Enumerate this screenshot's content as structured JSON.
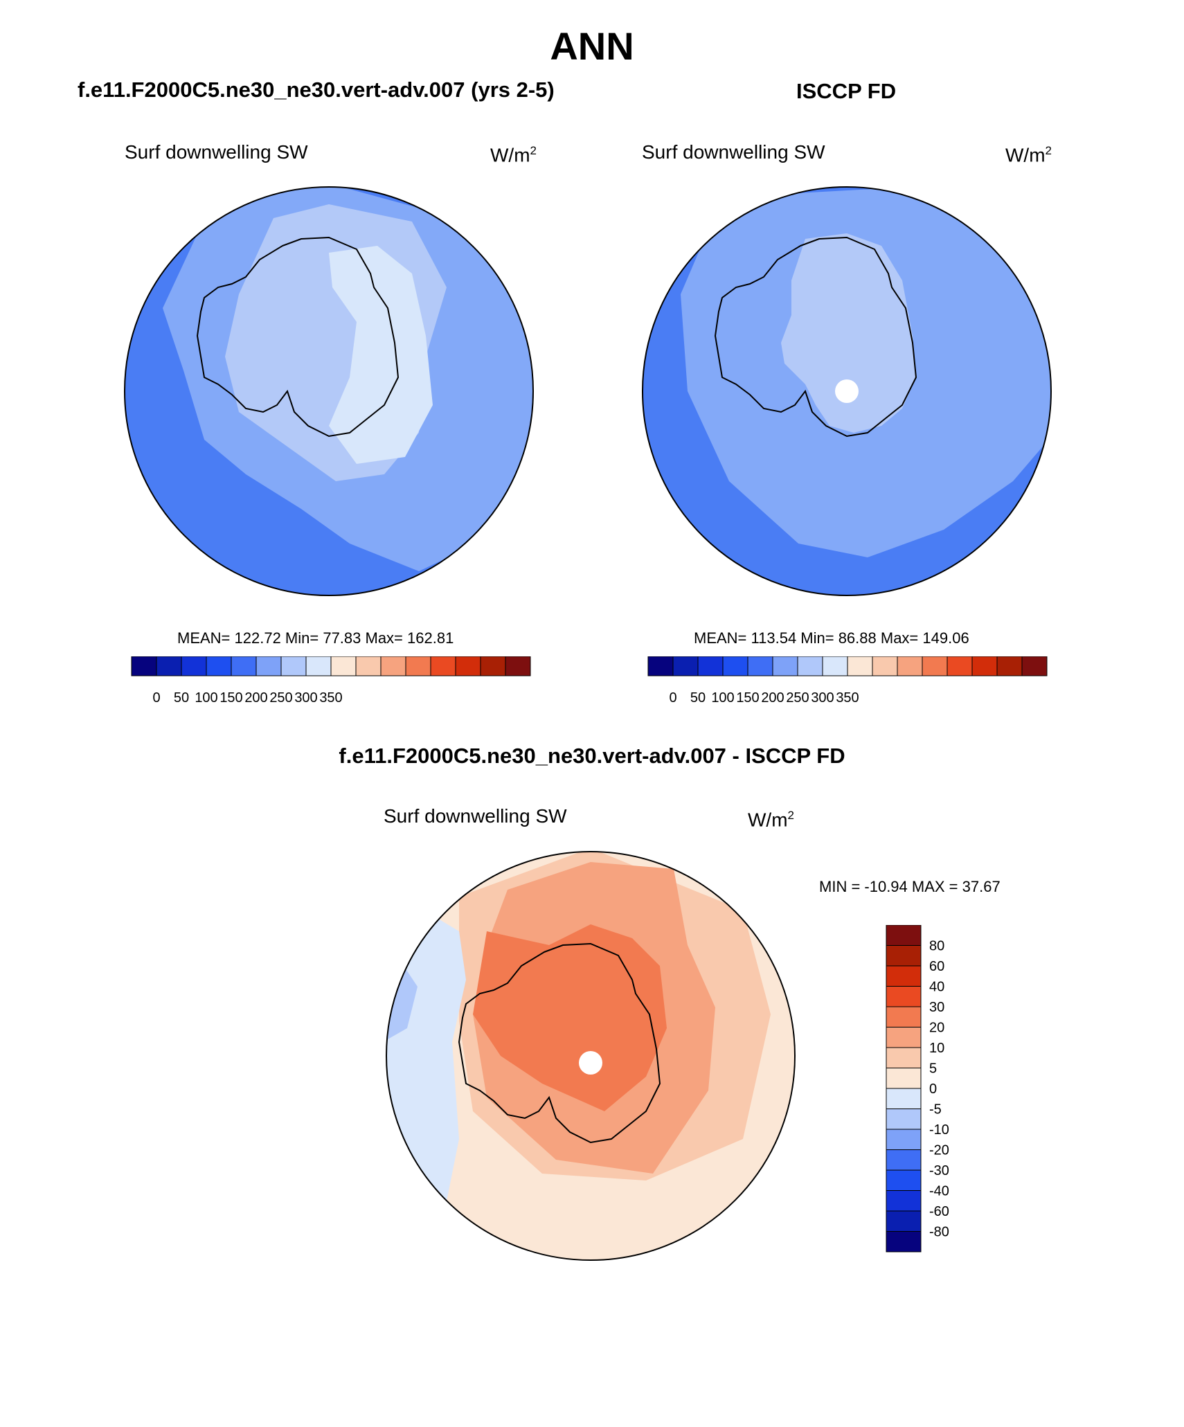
{
  "page_title": "ANN",
  "panels": {
    "model": {
      "header": "f.e11.F2000C5.ne30_ne30.vert-adv.007 (yrs 2-5)",
      "variable": "Surf downwelling SW",
      "units": "W/m",
      "units_sup": "2",
      "stats": "MEAN= 122.72  Min=  77.83  Max= 162.81"
    },
    "obs": {
      "header": "ISCCP FD",
      "variable": "Surf downwelling SW",
      "units": "W/m",
      "units_sup": "2",
      "stats": "MEAN= 113.54  Min=  86.88  Max= 149.06"
    },
    "diff": {
      "header": "f.e11.F2000C5.ne30_ne30.vert-adv.007 - ISCCP FD",
      "variable": "Surf downwelling SW",
      "units": "W/m",
      "units_sup": "2",
      "stats": "MIN = -10.94 MAX =  37.67"
    }
  },
  "chart_data": [
    {
      "type": "heatmap",
      "projection": "south-polar-stereographic",
      "title": "Surf downwelling SW",
      "dataset": "f.e11.F2000C5.ne30_ne30.vert-adv.007 (yrs 2-5)",
      "units": "W/m^2",
      "mean": 122.72,
      "min": 77.83,
      "max": 162.81,
      "colorbar_labels": [
        "0",
        "50",
        "100",
        "150",
        "200",
        "250",
        "300",
        "350"
      ],
      "colorbar_colors": [
        "#06037e",
        "#0a1fb0",
        "#1232d8",
        "#1e4ff0",
        "#3f6ef5",
        "#7ea2f8",
        "#b0c8fa",
        "#d9e7fb",
        "#fbe7d6",
        "#f9c9ad",
        "#f6a37f",
        "#f27a50",
        "#ea4a22",
        "#d22d0a",
        "#a82005",
        "#7d0f0f"
      ],
      "regions": {
        "ocean_outer": "#4a7df4",
        "ocean_mid": "#83a9f8",
        "coast_band": "#b3c9f8",
        "continent_core": "#d8e7fb"
      }
    },
    {
      "type": "heatmap",
      "projection": "south-polar-stereographic",
      "title": "Surf downwelling SW",
      "dataset": "ISCCP FD",
      "units": "W/m^2",
      "mean": 113.54,
      "min": 86.88,
      "max": 149.06,
      "colorbar_labels": [
        "0",
        "50",
        "100",
        "150",
        "200",
        "250",
        "300",
        "350"
      ],
      "colorbar_colors": [
        "#06037e",
        "#0a1fb0",
        "#1232d8",
        "#1e4ff0",
        "#3f6ef5",
        "#7ea2f8",
        "#b0c8fa",
        "#d9e7fb",
        "#fbe7d6",
        "#f9c9ad",
        "#f6a37f",
        "#f27a50",
        "#ea4a22",
        "#d22d0a",
        "#a82005",
        "#7d0f0f"
      ],
      "regions": {
        "ocean_outer": "#4a7df4",
        "ocean_mid": "#83a9f8",
        "continent": "#b3c9f8",
        "pole_missing": "#ffffff"
      }
    },
    {
      "type": "heatmap",
      "projection": "south-polar-stereographic",
      "title": "Surf downwelling SW",
      "dataset": "f.e11.F2000C5.ne30_ne30.vert-adv.007 - ISCCP FD",
      "units": "W/m^2",
      "min": -10.94,
      "max": 37.67,
      "colorbar_labels": [
        "80",
        "60",
        "40",
        "30",
        "20",
        "10",
        "5",
        "0",
        "-5",
        "-10",
        "-20",
        "-30",
        "-40",
        "-60",
        "-80"
      ],
      "colorbar_colors": [
        "#7d0f0f",
        "#a82005",
        "#d22d0a",
        "#ea4a22",
        "#f27a50",
        "#f6a37f",
        "#f9c9ad",
        "#fbe7d6",
        "#d9e7fb",
        "#b0c8fa",
        "#7ea2f8",
        "#3f6ef5",
        "#1e4ff0",
        "#1232d8",
        "#0a1fb0",
        "#06037e"
      ],
      "regions": {
        "background": "#fbe7d6",
        "weak_positive": "#f9c9ad",
        "moderate_positive": "#f6a37f",
        "strong_positive": "#f27a50",
        "weak_negative": "#d9e7fb",
        "moderate_negative": "#b0c8fa",
        "pole_missing": "#ffffff"
      }
    }
  ]
}
